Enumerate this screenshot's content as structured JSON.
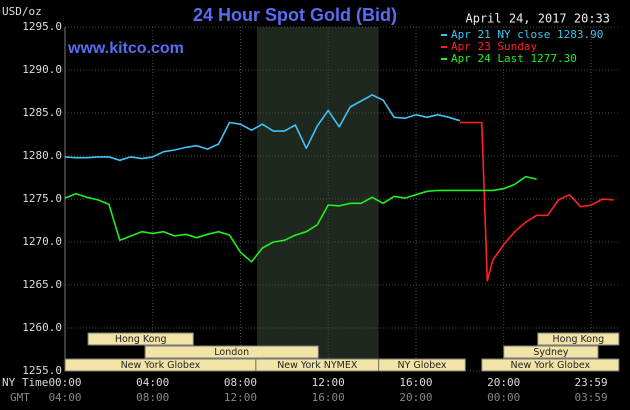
{
  "chart_data": {
    "type": "line",
    "title": "24 Hour Spot Gold (Bid)",
    "y_label": "USD/oz",
    "watermark": "www.kitco.com",
    "timestamp": "April 24, 2017 20:33",
    "x_label": "NY Time",
    "x2_label": "GMT",
    "x": [
      0,
      0.5,
      1,
      1.5,
      2,
      2.5,
      3,
      3.5,
      4,
      4.5,
      5,
      5.5,
      6,
      6.5,
      7,
      7.5,
      8,
      8.5,
      9,
      9.5,
      10,
      10.5,
      11,
      11.5,
      12,
      12.5,
      13,
      13.5,
      14,
      14.5,
      15,
      15.5,
      16,
      16.5,
      17,
      17.5,
      18,
      18.5,
      19,
      19.25,
      19.5,
      20,
      20.5,
      21,
      21.5,
      22,
      22.5,
      23,
      23.5,
      24,
      24.5,
      25
    ],
    "series": [
      {
        "name": "Apr 21 NY close 1283.90",
        "color": "#3fc4f4",
        "values": [
          1279.9,
          1279.8,
          1279.8,
          1279.9,
          1279.9,
          1279.5,
          1279.9,
          1279.7,
          1279.9,
          1280.5,
          1280.7,
          1281.0,
          1281.2,
          1280.8,
          1281.4,
          1283.9,
          1283.7,
          1283.0,
          1283.7,
          1282.9,
          1282.9,
          1283.6,
          1280.9,
          1283.5,
          1285.3,
          1283.4,
          1285.7,
          1286.4,
          1287.1,
          1286.5,
          1284.5,
          1284.4,
          1284.8,
          1284.5,
          1284.8,
          1284.5,
          1284.1,
          null,
          null,
          null,
          null,
          null,
          null,
          null,
          null,
          null,
          null,
          null,
          null,
          null,
          null,
          null
        ]
      },
      {
        "name": "Apr 23 Sunday",
        "color": "#ff2222",
        "values": [
          null,
          null,
          null,
          null,
          null,
          null,
          null,
          null,
          null,
          null,
          null,
          null,
          null,
          null,
          null,
          null,
          null,
          null,
          null,
          null,
          null,
          null,
          null,
          null,
          null,
          null,
          null,
          null,
          null,
          null,
          null,
          null,
          null,
          null,
          null,
          null,
          1283.9,
          1283.9,
          1283.9,
          1265.5,
          1267.9,
          1269.7,
          1271.2,
          1272.3,
          1273.1,
          1273.1,
          1274.9,
          1275.5,
          1274.1,
          1274.3,
          1275.0,
          1274.9
        ]
      },
      {
        "name": "Apr 24 Last 1277.30",
        "color": "#22ee22",
        "values": [
          1275.1,
          1275.6,
          1275.2,
          1274.9,
          1274.4,
          1270.2,
          1270.7,
          1271.2,
          1271.0,
          1271.2,
          1270.7,
          1270.9,
          1270.5,
          1270.9,
          1271.2,
          1270.8,
          1268.8,
          1267.7,
          1269.3,
          1270.0,
          1270.2,
          1270.8,
          1271.2,
          1272.0,
          1274.3,
          1274.2,
          1274.5,
          1274.5,
          1275.2,
          1274.5,
          1275.3,
          1275.1,
          1275.5,
          1275.9,
          1276.0,
          1276.0,
          1276.0,
          1276.0,
          1276.0,
          1276.0,
          1276.0,
          1276.2,
          1276.7,
          1277.6,
          1277.3,
          null,
          null,
          null,
          null,
          null,
          null,
          null
        ]
      }
    ],
    "xlim": [
      0,
      25.3
    ],
    "ylim": [
      1255,
      1295
    ],
    "xticks": [
      {
        "value": 0,
        "label": "00:00"
      },
      {
        "value": 4,
        "label": "04:00"
      },
      {
        "value": 8,
        "label": "08:00"
      },
      {
        "value": 12,
        "label": "12:00"
      },
      {
        "value": 16,
        "label": "16:00"
      },
      {
        "value": 20,
        "label": "20:00"
      },
      {
        "value": 23.983,
        "label": "23:59"
      }
    ],
    "gmt_labels": [
      "04:00",
      "08:00",
      "12:00",
      "16:00",
      "20:00",
      "00:00",
      "03:59"
    ],
    "yticks": [
      {
        "value": 1255,
        "label": "1255.0"
      },
      {
        "value": 1260,
        "label": "1260.0"
      },
      {
        "value": 1265,
        "label": "1265.0"
      },
      {
        "value": 1270,
        "label": "1270.0"
      },
      {
        "value": 1275,
        "label": "1275.0"
      },
      {
        "value": 1280,
        "label": "1280.0"
      },
      {
        "value": 1285,
        "label": "1285.0"
      },
      {
        "value": 1290,
        "label": "1290.0"
      },
      {
        "value": 1295,
        "label": "1295.0"
      }
    ],
    "grid": true,
    "shaded_xrange": [
      8.75,
      14.3
    ],
    "sessions": [
      {
        "label": "Hong Kong",
        "start": 1.05,
        "end": 5.85,
        "row": 0
      },
      {
        "label": "Hong Kong",
        "start": 21.55,
        "end": 25.25,
        "row": 0
      },
      {
        "label": "London",
        "start": 3.65,
        "end": 11.55,
        "row": 1
      },
      {
        "label": "Sydney",
        "start": 20,
        "end": 24.3,
        "row": 1
      },
      {
        "label": "New York Globex",
        "start": 0,
        "end": 8.7,
        "row": 2
      },
      {
        "label": "New York NYMEX",
        "start": 8.7,
        "end": 14.3,
        "row": 2
      },
      {
        "label": "NY Globex",
        "start": 14.3,
        "end": 18.25,
        "row": 2
      },
      {
        "label": "New York Globex",
        "start": 19,
        "end": 25.25,
        "row": 2
      }
    ]
  }
}
